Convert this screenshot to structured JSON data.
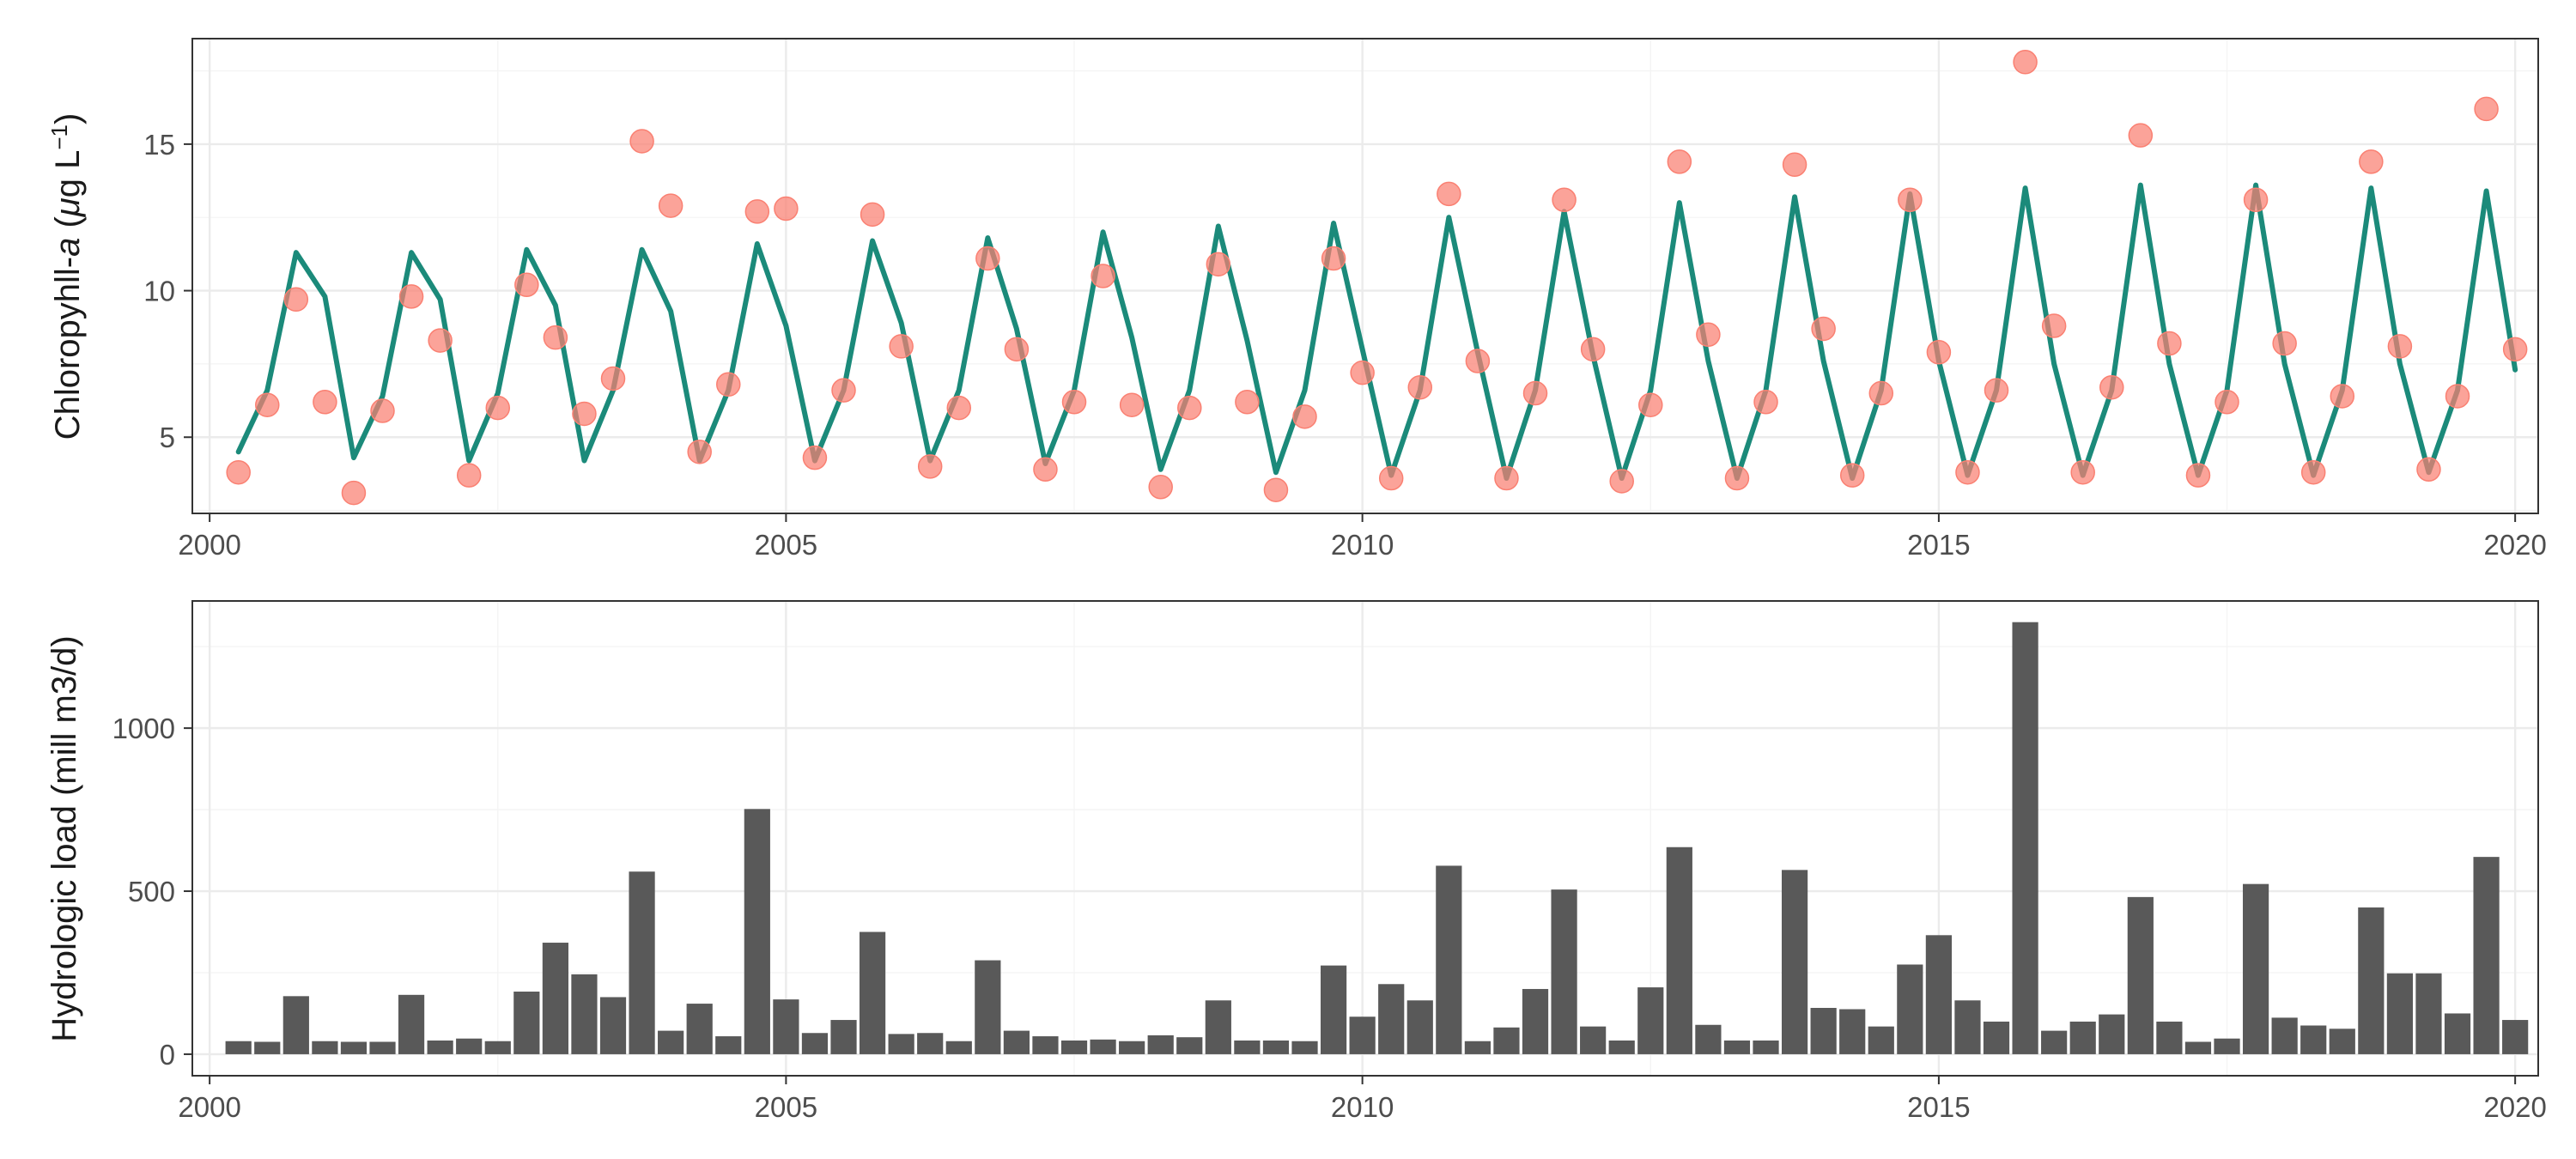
{
  "chart_data": [
    {
      "type": "line",
      "ylabel_text": "Chloropyhll-",
      "ylabel_italic": "a",
      "ylabel_unit_open": " (",
      "ylabel_unit_mu": "μ",
      "ylabel_unit_rest": "g L",
      "ylabel_unit_exp": "−1",
      "ylabel_unit_close": ")",
      "xlim": [
        1999.85,
        2020.2
      ],
      "ylim": [
        2.4,
        18.6
      ],
      "x_ticks": [
        2000,
        2005,
        2010,
        2015,
        2020
      ],
      "x_tick_labels": [
        "2000",
        "2005",
        "2010",
        "2015",
        "2020"
      ],
      "y_ticks": [
        5,
        10,
        15
      ],
      "y_tick_labels": [
        "5",
        "10",
        "15"
      ],
      "grid": true,
      "colors": {
        "line": "#1b8a7a",
        "points": "#fa8072"
      },
      "series": [
        {
          "kind": "line",
          "x": [
            2000.25,
            2000.5,
            2000.75,
            2001.0,
            2001.25,
            2001.5,
            2001.75,
            2002.0,
            2002.25,
            2002.5,
            2002.75,
            2003.0,
            2003.25,
            2003.5,
            2003.75,
            2004.0,
            2004.25,
            2004.5,
            2004.75,
            2005.0,
            2005.25,
            2005.5,
            2005.75,
            2006.0,
            2006.25,
            2006.5,
            2006.75,
            2007.0,
            2007.25,
            2007.5,
            2007.75,
            2008.0,
            2008.25,
            2008.5,
            2008.75,
            2009.0,
            2009.25,
            2009.5,
            2009.75,
            2010.0,
            2010.25,
            2010.5,
            2010.75,
            2011.0,
            2011.25,
            2011.5,
            2011.75,
            2012.0,
            2012.25,
            2012.5,
            2012.75,
            2013.0,
            2013.25,
            2013.5,
            2013.75,
            2014.0,
            2014.25,
            2014.5,
            2014.75,
            2015.0,
            2015.25,
            2015.5,
            2015.75,
            2016.0,
            2016.25,
            2016.5,
            2016.75,
            2017.0,
            2017.25,
            2017.5,
            2017.75,
            2018.0,
            2018.25,
            2018.5,
            2018.75,
            2019.0,
            2019.25,
            2019.5,
            2019.75,
            2020.0
          ],
          "y": [
            4.5,
            6.6,
            11.3,
            9.8,
            4.3,
            6.4,
            11.3,
            9.7,
            4.2,
            6.5,
            11.4,
            9.5,
            4.2,
            6.6,
            11.4,
            9.3,
            4.2,
            6.6,
            11.6,
            8.8,
            4.2,
            6.6,
            11.7,
            8.9,
            4.2,
            6.6,
            11.8,
            8.7,
            4.1,
            6.6,
            12.0,
            8.4,
            3.9,
            6.6,
            12.2,
            8.3,
            3.8,
            6.6,
            12.3,
            8.0,
            3.7,
            6.6,
            12.5,
            7.9,
            3.6,
            6.6,
            12.7,
            7.8,
            3.6,
            6.6,
            13.0,
            7.6,
            3.6,
            6.6,
            13.2,
            7.6,
            3.6,
            6.6,
            13.3,
            7.6,
            3.7,
            6.6,
            13.5,
            7.5,
            3.7,
            6.6,
            13.6,
            7.5,
            3.7,
            6.6,
            13.6,
            7.5,
            3.7,
            6.6,
            13.5,
            7.5,
            3.8,
            6.6,
            13.4,
            7.3
          ]
        },
        {
          "kind": "scatter",
          "x": [
            2000.25,
            2000.5,
            2000.75,
            2001.0,
            2001.25,
            2001.5,
            2001.75,
            2002.0,
            2002.25,
            2002.5,
            2002.75,
            2003.0,
            2003.25,
            2003.5,
            2003.75,
            2004.0,
            2004.25,
            2004.5,
            2004.75,
            2005.0,
            2005.25,
            2005.5,
            2005.75,
            2006.0,
            2006.25,
            2006.5,
            2006.75,
            2007.0,
            2007.25,
            2007.5,
            2007.75,
            2008.0,
            2008.25,
            2008.5,
            2008.75,
            2009.0,
            2009.25,
            2009.5,
            2009.75,
            2010.0,
            2010.25,
            2010.5,
            2010.75,
            2011.0,
            2011.25,
            2011.5,
            2011.75,
            2012.0,
            2012.25,
            2012.5,
            2012.75,
            2013.0,
            2013.25,
            2013.5,
            2013.75,
            2014.0,
            2014.25,
            2014.5,
            2014.75,
            2015.0,
            2015.25,
            2015.5,
            2015.75,
            2016.0,
            2016.25,
            2016.5,
            2016.75,
            2017.0,
            2017.25,
            2017.5,
            2017.75,
            2018.0,
            2018.25,
            2018.5,
            2018.75,
            2019.0,
            2019.25,
            2019.5,
            2019.75,
            2020.0
          ],
          "y": [
            3.8,
            6.1,
            9.7,
            6.2,
            3.1,
            5.9,
            9.8,
            8.3,
            3.7,
            6.0,
            10.2,
            8.4,
            5.8,
            7.0,
            15.1,
            12.9,
            4.5,
            6.8,
            12.7,
            12.8,
            4.3,
            6.6,
            12.6,
            8.1,
            4.0,
            6.0,
            11.1,
            8.0,
            3.9,
            6.2,
            10.5,
            6.1,
            3.3,
            6.0,
            10.9,
            6.2,
            3.2,
            5.7,
            11.1,
            7.2,
            3.6,
            6.7,
            13.3,
            7.6,
            3.6,
            6.5,
            13.1,
            8.0,
            3.5,
            6.1,
            14.4,
            8.5,
            3.6,
            6.2,
            14.3,
            8.7,
            3.7,
            6.5,
            13.1,
            7.9,
            3.8,
            6.6,
            17.8,
            8.8,
            3.8,
            6.7,
            15.3,
            8.2,
            3.7,
            6.2,
            13.1,
            8.2,
            3.8,
            6.4,
            14.4,
            8.1,
            3.9,
            6.4,
            16.2,
            8.0
          ]
        }
      ]
    },
    {
      "type": "bar",
      "ylabel": "Hydrologic load (mill m3/d)",
      "xlim": [
        1999.85,
        2020.2
      ],
      "ylim": [
        -66,
        1390
      ],
      "x_ticks": [
        2000,
        2005,
        2010,
        2015,
        2020
      ],
      "x_tick_labels": [
        "2000",
        "2005",
        "2010",
        "2015",
        "2020"
      ],
      "y_ticks": [
        0,
        500,
        1000
      ],
      "y_tick_labels": [
        "0",
        "500",
        "1000"
      ],
      "grid": true,
      "colors": {
        "bar": "#595959"
      },
      "bar_width": 0.225,
      "x": [
        2000.25,
        2000.5,
        2000.75,
        2001.0,
        2001.25,
        2001.5,
        2001.75,
        2002.0,
        2002.25,
        2002.5,
        2002.75,
        2003.0,
        2003.25,
        2003.5,
        2003.75,
        2004.0,
        2004.25,
        2004.5,
        2004.75,
        2005.0,
        2005.25,
        2005.5,
        2005.75,
        2006.0,
        2006.25,
        2006.5,
        2006.75,
        2007.0,
        2007.25,
        2007.5,
        2007.75,
        2008.0,
        2008.25,
        2008.5,
        2008.75,
        2009.0,
        2009.25,
        2009.5,
        2009.75,
        2010.0,
        2010.25,
        2010.5,
        2010.75,
        2011.0,
        2011.25,
        2011.5,
        2011.75,
        2012.0,
        2012.25,
        2012.5,
        2012.75,
        2013.0,
        2013.25,
        2013.5,
        2013.75,
        2014.0,
        2014.25,
        2014.5,
        2014.75,
        2015.0,
        2015.25,
        2015.5,
        2015.75,
        2016.0,
        2016.25,
        2016.5,
        2016.75,
        2017.0,
        2017.25,
        2017.5,
        2017.75,
        2018.0,
        2018.25,
        2018.5,
        2018.75,
        2019.0,
        2019.25,
        2019.5,
        2019.75,
        2020.0
      ],
      "values": [
        40,
        38,
        178,
        40,
        38,
        38,
        182,
        42,
        48,
        40,
        192,
        342,
        245,
        175,
        560,
        72,
        155,
        55,
        752,
        168,
        65,
        105,
        375,
        62,
        65,
        40,
        288,
        72,
        55,
        42,
        45,
        40,
        58,
        52,
        165,
        42,
        42,
        40,
        272,
        115,
        215,
        165,
        578,
        40,
        82,
        200,
        505,
        85,
        42,
        205,
        635,
        90,
        42,
        42,
        565,
        142,
        138,
        85,
        275,
        365,
        165,
        100,
        1325,
        72,
        100,
        122,
        482,
        100,
        38,
        48,
        522,
        112,
        88,
        78,
        450,
        248,
        248,
        125,
        605,
        105
      ]
    }
  ]
}
